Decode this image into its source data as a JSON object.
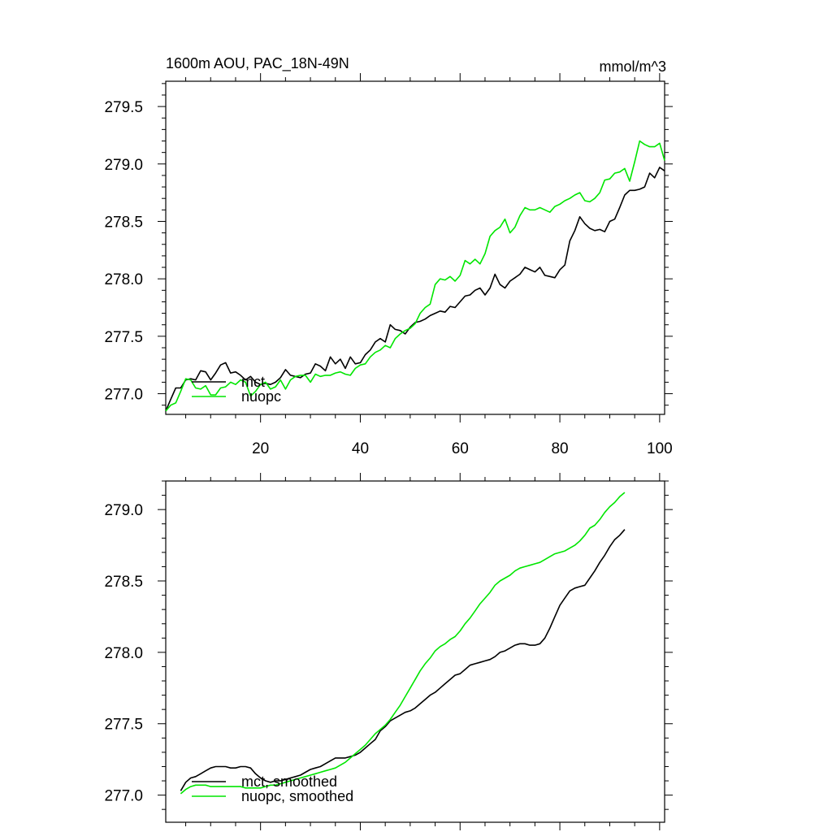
{
  "chart_data": [
    {
      "type": "line",
      "title": "1600m AOU, PAC_18N-49N",
      "units": "mmol/m^3",
      "xlim": [
        1,
        101
      ],
      "ylim": [
        276.82,
        279.72
      ],
      "xticks": [
        20,
        40,
        60,
        80,
        100
      ],
      "yticks": [
        277.0,
        277.5,
        278.0,
        278.5,
        279.0,
        279.5
      ],
      "ytick_labels": [
        "277.0",
        "277.5",
        "278.0",
        "278.5",
        "279.0",
        "279.5"
      ],
      "xtick_labels": [
        "20",
        "40",
        "60",
        "80",
        "100"
      ],
      "legend": {
        "position": "bottom-left",
        "entries": [
          "mct",
          "nuopc"
        ]
      },
      "series": [
        {
          "name": "mct",
          "color": "#000000",
          "x_start": 1,
          "values": [
            276.85,
            276.95,
            277.05,
            277.05,
            277.12,
            277.13,
            277.12,
            277.2,
            277.19,
            277.12,
            277.18,
            277.25,
            277.27,
            277.18,
            277.19,
            277.16,
            277.12,
            277.15,
            277.1,
            277.08,
            277.09,
            277.08,
            277.1,
            277.14,
            277.21,
            277.16,
            277.15,
            277.14,
            277.17,
            277.18,
            277.26,
            277.24,
            277.2,
            277.32,
            277.26,
            277.3,
            277.22,
            277.32,
            277.26,
            277.27,
            277.34,
            277.38,
            277.45,
            277.48,
            277.45,
            277.6,
            277.56,
            277.55,
            277.52,
            277.58,
            277.62,
            277.63,
            277.65,
            277.68,
            277.7,
            277.72,
            277.71,
            277.76,
            277.75,
            277.8,
            277.85,
            277.86,
            277.9,
            277.92,
            277.86,
            277.92,
            278.04,
            277.95,
            277.92,
            277.98,
            278.01,
            278.04,
            278.1,
            278.08,
            278.06,
            278.1,
            278.03,
            278.02,
            278.01,
            278.08,
            278.12,
            278.33,
            278.42,
            278.54,
            278.48,
            278.44,
            278.42,
            278.43,
            278.41,
            278.5,
            278.52,
            278.62,
            278.73,
            278.77,
            278.77,
            278.78,
            278.8,
            278.92,
            278.88,
            278.97,
            278.94
          ]
        },
        {
          "name": "nuopc",
          "color": "#00e600",
          "x_start": 1,
          "values": [
            276.85,
            276.9,
            276.92,
            277.02,
            277.13,
            277.12,
            277.05,
            277.04,
            277.07,
            276.99,
            276.99,
            277.05,
            277.06,
            277.1,
            277.08,
            277.12,
            277.1,
            276.98,
            277.02,
            277.08,
            277.1,
            277.04,
            277.06,
            277.12,
            277.04,
            277.12,
            277.15,
            277.16,
            277.16,
            277.1,
            277.17,
            277.15,
            277.16,
            277.16,
            277.18,
            277.19,
            277.17,
            277.16,
            277.22,
            277.25,
            277.26,
            277.32,
            277.36,
            277.38,
            277.42,
            277.4,
            277.48,
            277.52,
            277.55,
            277.57,
            277.61,
            277.7,
            277.75,
            277.78,
            277.95,
            278.0,
            277.99,
            278.02,
            277.98,
            278.03,
            278.16,
            278.13,
            278.17,
            278.13,
            278.22,
            278.37,
            278.42,
            278.45,
            278.52,
            278.4,
            278.45,
            278.55,
            278.62,
            278.6,
            278.6,
            278.62,
            278.6,
            278.58,
            278.63,
            278.65,
            278.68,
            278.7,
            278.73,
            278.75,
            278.68,
            278.67,
            278.7,
            278.75,
            278.86,
            278.87,
            278.92,
            278.93,
            278.96,
            278.85,
            279.02,
            279.2,
            279.17,
            279.15,
            279.15,
            279.18,
            279.03
          ]
        }
      ]
    },
    {
      "type": "line",
      "title": "",
      "xlim": [
        1,
        101
      ],
      "ylim": [
        276.81,
        279.2
      ],
      "yticks": [
        277.0,
        277.5,
        278.0,
        278.5,
        279.0
      ],
      "ytick_labels": [
        "277.0",
        "277.5",
        "278.0",
        "278.5",
        "279.0"
      ],
      "xticks": [
        20,
        40,
        60,
        80,
        100
      ],
      "legend": {
        "position": "bottom-left",
        "entries": [
          "mct, smoothed",
          "nuopc, smoothed"
        ]
      },
      "series": [
        {
          "name": "mct, smoothed",
          "color": "#000000",
          "x_start": 4,
          "values": [
            277.03,
            277.09,
            277.12,
            277.13,
            277.15,
            277.17,
            277.19,
            277.2,
            277.2,
            277.2,
            277.19,
            277.19,
            277.2,
            277.2,
            277.19,
            277.15,
            277.12,
            277.1,
            277.09,
            277.1,
            277.1,
            277.11,
            277.12,
            277.13,
            277.14,
            277.16,
            277.18,
            277.19,
            277.2,
            277.22,
            277.24,
            277.26,
            277.26,
            277.26,
            277.27,
            277.28,
            277.3,
            277.33,
            277.36,
            277.39,
            277.45,
            277.48,
            277.52,
            277.54,
            277.56,
            277.58,
            277.59,
            277.61,
            277.64,
            277.67,
            277.7,
            277.72,
            277.75,
            277.78,
            277.81,
            277.84,
            277.85,
            277.88,
            277.91,
            277.92,
            277.93,
            277.94,
            277.95,
            277.97,
            278.0,
            278.01,
            278.03,
            278.05,
            278.06,
            278.06,
            278.05,
            278.05,
            278.06,
            278.1,
            278.17,
            278.25,
            278.33,
            278.38,
            278.43,
            278.45,
            278.46,
            278.47,
            278.52,
            278.57,
            278.63,
            278.68,
            278.74,
            278.79,
            278.82,
            278.86
          ]
        },
        {
          "name": "nuopc, smoothed",
          "color": "#00e600",
          "x_start": 4,
          "values": [
            277.01,
            277.04,
            277.06,
            277.07,
            277.07,
            277.07,
            277.06,
            277.06,
            277.06,
            277.06,
            277.06,
            277.06,
            277.06,
            277.05,
            277.05,
            277.05,
            277.05,
            277.06,
            277.07,
            277.07,
            277.08,
            277.09,
            277.1,
            277.11,
            277.12,
            277.13,
            277.14,
            277.15,
            277.16,
            277.17,
            277.18,
            277.19,
            277.21,
            277.23,
            277.26,
            277.29,
            277.32,
            277.35,
            277.39,
            277.43,
            277.46,
            277.49,
            277.53,
            277.58,
            277.63,
            277.69,
            277.75,
            277.81,
            277.87,
            277.92,
            277.96,
            278.01,
            278.04,
            278.06,
            278.09,
            278.11,
            278.15,
            278.2,
            278.24,
            278.29,
            278.34,
            278.38,
            278.42,
            278.47,
            278.5,
            278.52,
            278.54,
            278.57,
            278.59,
            278.6,
            278.61,
            278.62,
            278.63,
            278.65,
            278.67,
            278.69,
            278.7,
            278.71,
            278.73,
            278.75,
            278.78,
            278.82,
            278.87,
            278.89,
            278.93,
            278.98,
            279.02,
            279.05,
            279.09,
            279.12
          ]
        }
      ]
    }
  ]
}
